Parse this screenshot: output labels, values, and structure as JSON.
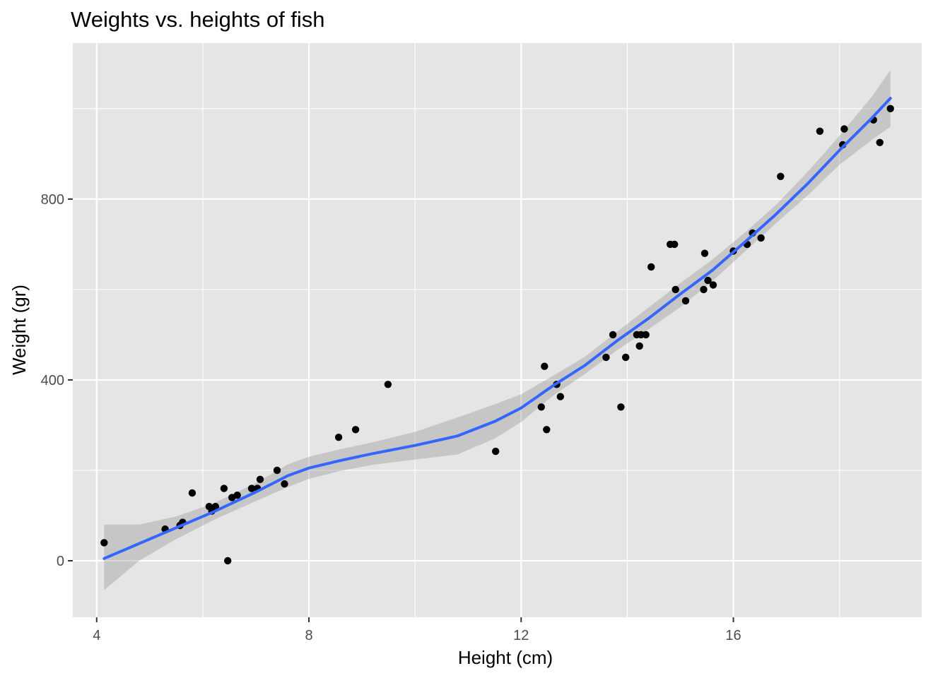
{
  "chart_data": {
    "type": "scatter",
    "title": "Weights vs. heights of fish",
    "xlabel": "Height (cm)",
    "ylabel": "Weight (gr)",
    "xlim": [
      3.55,
      19.55
    ],
    "ylim": [
      -125,
      1145
    ],
    "x_ticks": [
      4,
      8,
      12,
      16
    ],
    "x_tick_labels": [
      "4",
      "8",
      "12",
      "16"
    ],
    "y_ticks": [
      0,
      400,
      800
    ],
    "y_tick_labels": [
      "0",
      "400",
      "800"
    ],
    "x_minor_ticks": [
      6,
      10,
      14,
      18
    ],
    "y_minor_ticks": [
      200,
      600,
      1000
    ],
    "grid": true,
    "legend": "none",
    "colors": {
      "panel_background": "#e5e5e5",
      "grid": "#ffffff",
      "points": "#000000",
      "smooth_line": "#3366ff",
      "confidence_band": "#999999"
    },
    "points": {
      "name": "",
      "x": [
        4.14,
        5.29,
        5.57,
        5.62,
        5.8,
        6.12,
        6.17,
        6.24,
        6.4,
        6.47,
        6.55,
        6.65,
        6.92,
        7.03,
        7.08,
        7.4,
        7.54,
        8.56,
        8.88,
        9.49,
        11.52,
        12.38,
        12.44,
        12.48,
        12.67,
        12.74,
        13.6,
        13.73,
        13.88,
        13.97,
        14.18,
        14.23,
        14.26,
        14.35,
        14.45,
        14.81,
        14.89,
        14.91,
        15.1,
        15.44,
        15.46,
        15.52,
        15.62,
        16.0,
        16.26,
        16.36,
        16.52,
        16.89,
        17.63,
        18.06,
        18.09,
        18.64,
        18.76,
        18.96
      ],
      "y": [
        40,
        70,
        78,
        85,
        150,
        120,
        110,
        120,
        160,
        0,
        140,
        145,
        160,
        160,
        180,
        200,
        170,
        273,
        290,
        390,
        242,
        340,
        430,
        290,
        390,
        363,
        450,
        500,
        340,
        450,
        500,
        475,
        500,
        500,
        650,
        700,
        700,
        600,
        575,
        600,
        680,
        620,
        610,
        685,
        700,
        725,
        714,
        850,
        950,
        920,
        955,
        975,
        925,
        1000
      ]
    },
    "smooth": {
      "name": "",
      "method": "loess",
      "x": [
        4.14,
        4.8,
        5.5,
        6.2,
        7.0,
        7.6,
        8.0,
        8.6,
        9.2,
        10.0,
        10.8,
        11.5,
        12.0,
        12.6,
        13.2,
        13.8,
        14.4,
        15.0,
        15.6,
        16.2,
        16.8,
        17.4,
        18.0,
        18.6,
        18.96
      ],
      "y": [
        5,
        38,
        73,
        108,
        152,
        188,
        205,
        222,
        237,
        255,
        276,
        308,
        338,
        387,
        432,
        486,
        536,
        590,
        642,
        703,
        766,
        834,
        908,
        978,
        1023
      ],
      "lower": [
        -65,
        0,
        48,
        90,
        132,
        163,
        181,
        199,
        212,
        224,
        235,
        270,
        307,
        365,
        413,
        465,
        512,
        561,
        618,
        682,
        746,
        808,
        876,
        930,
        960
      ],
      "upper": [
        80,
        80,
        98,
        127,
        172,
        213,
        230,
        247,
        262,
        285,
        317,
        346,
        368,
        409,
        451,
        506,
        560,
        614,
        666,
        724,
        787,
        860,
        940,
        1025,
        1085
      ]
    }
  }
}
